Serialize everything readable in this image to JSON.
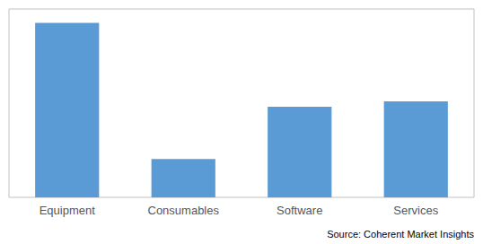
{
  "chart_data": {
    "type": "bar",
    "categories": [
      "Equipment",
      "Consumables",
      "Software",
      "Services"
    ],
    "values": [
      100,
      22,
      52,
      55
    ],
    "color": "#5B9BD5",
    "ylim": [
      0,
      108
    ],
    "grid": false,
    "tick_labels": "x",
    "annotation": "Source: Coherent Market Insights"
  }
}
